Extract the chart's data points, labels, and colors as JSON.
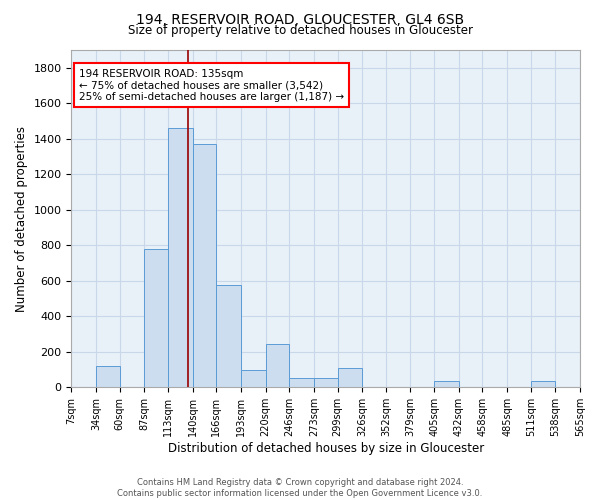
{
  "title": "194, RESERVOIR ROAD, GLOUCESTER, GL4 6SB",
  "subtitle": "Size of property relative to detached houses in Gloucester",
  "xlabel": "Distribution of detached houses by size in Gloucester",
  "ylabel": "Number of detached properties",
  "bar_color": "#ccddf0",
  "bar_edge_color": "#5b9bd5",
  "grid_color": "#c8d8e8",
  "background_color": "#e8f0f8",
  "vline_x": 135,
  "vline_color": "#990000",
  "annotation_text": "194 RESERVOIR ROAD: 135sqm\n← 75% of detached houses are smaller (3,542)\n25% of semi-detached houses are larger (1,187) →",
  "annotation_box_color": "white",
  "annotation_box_edge": "red",
  "bin_edges": [
    7,
    34,
    60,
    87,
    113,
    140,
    166,
    193,
    220,
    246,
    273,
    299,
    326,
    352,
    379,
    405,
    432,
    458,
    485,
    511,
    538
  ],
  "bar_heights": [
    0,
    120,
    0,
    780,
    1460,
    1370,
    575,
    100,
    245,
    50,
    50,
    110,
    0,
    0,
    0,
    35,
    0,
    0,
    0,
    35
  ],
  "ylim": [
    0,
    1900
  ],
  "yticks": [
    0,
    200,
    400,
    600,
    800,
    1000,
    1200,
    1400,
    1600,
    1800
  ],
  "footer_text": "Contains HM Land Registry data © Crown copyright and database right 2024.\nContains public sector information licensed under the Open Government Licence v3.0.",
  "figsize": [
    6.0,
    5.0
  ],
  "dpi": 100
}
